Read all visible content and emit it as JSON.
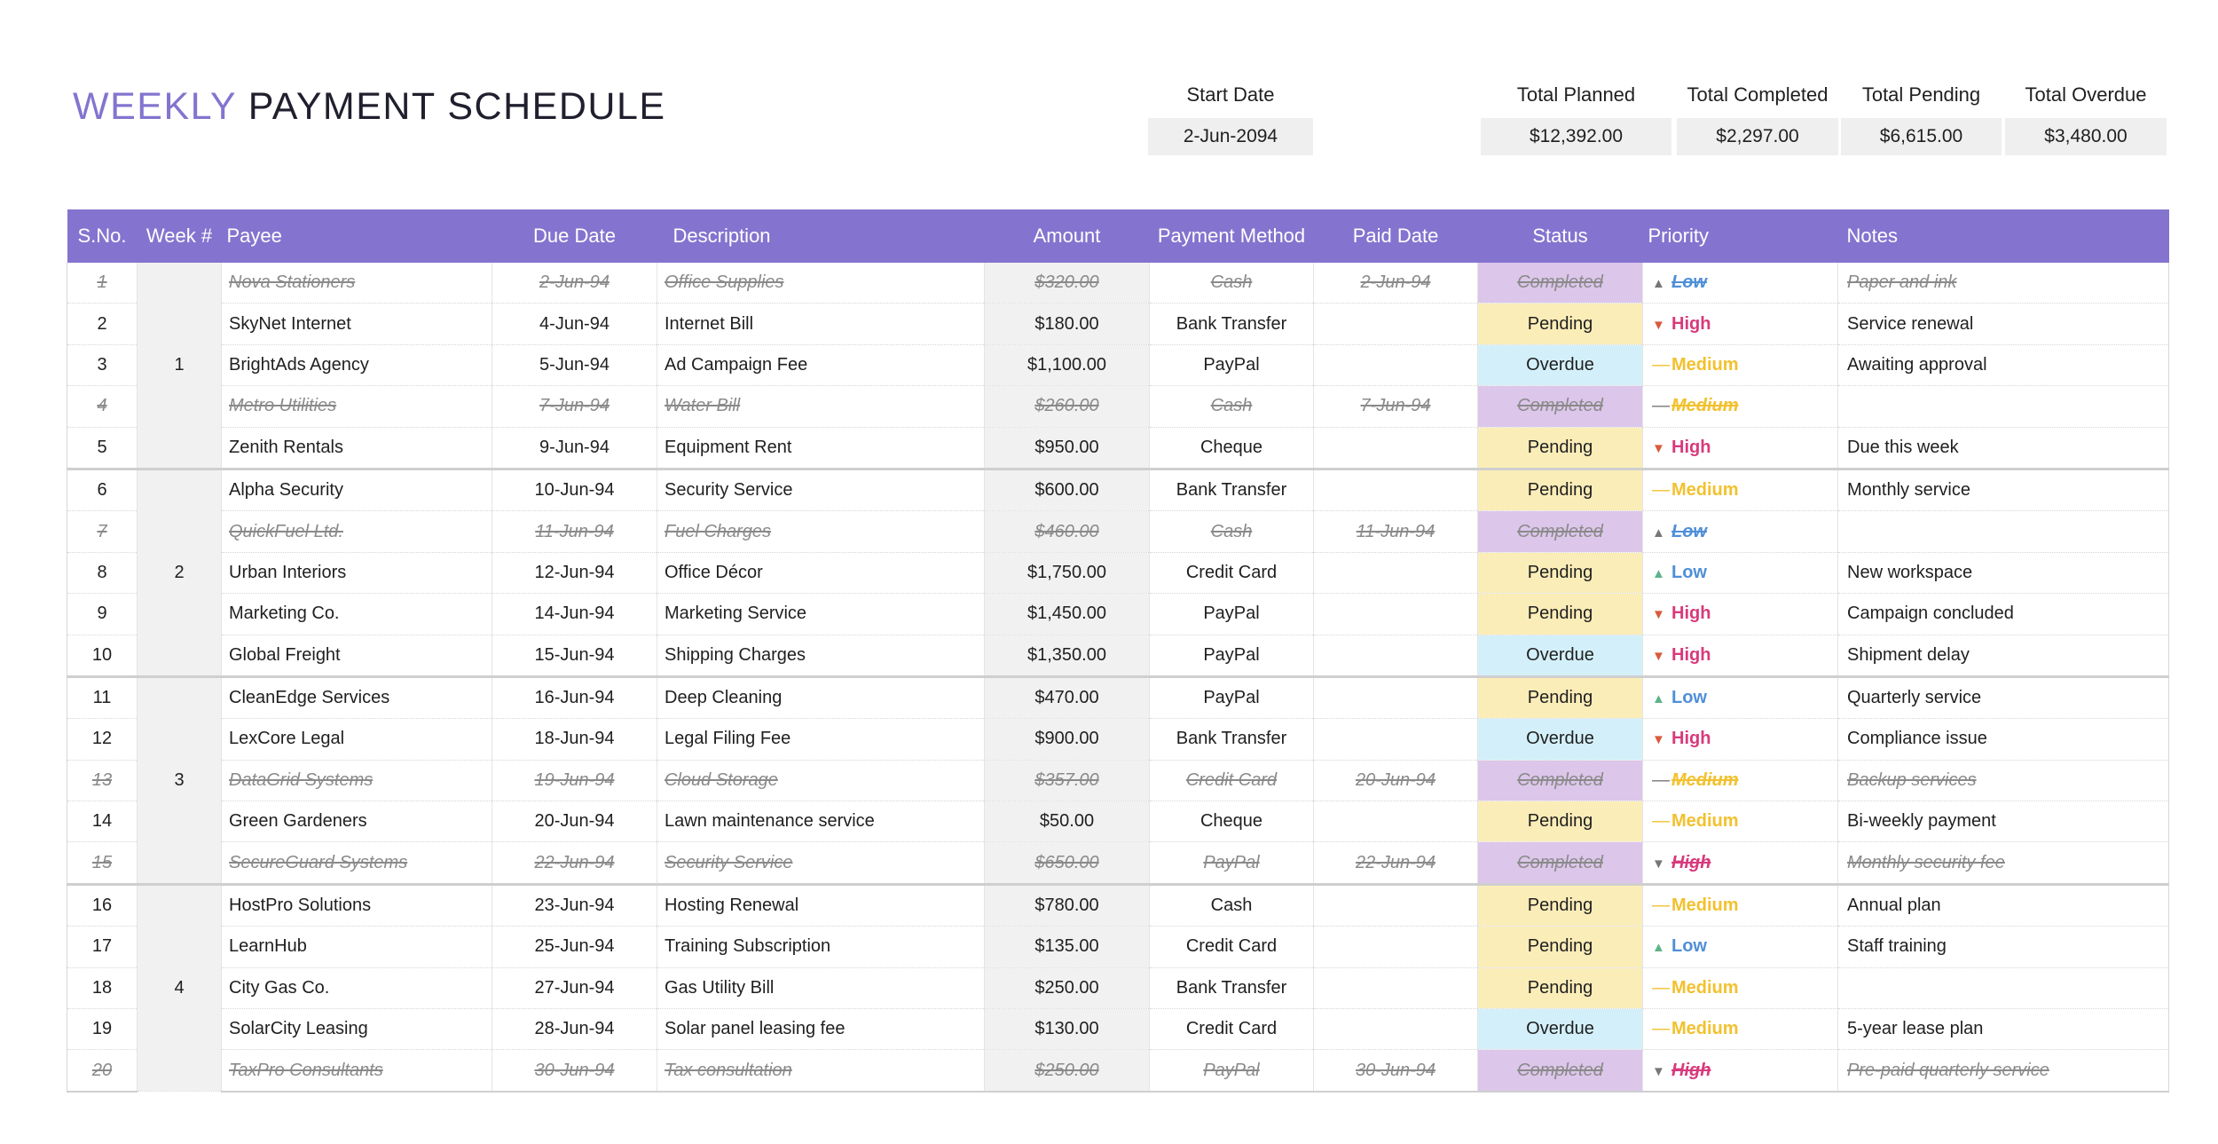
{
  "title": {
    "accent": "WEEKLY",
    "rest": "PAYMENT SCHEDULE"
  },
  "summary": {
    "start_date_label": "Start Date",
    "start_date": "2-Jun-2094",
    "total_planned_label": "Total Planned",
    "total_planned": "$12,392.00",
    "total_completed_label": "Total Completed",
    "total_completed": "$2,297.00",
    "total_pending_label": "Total Pending",
    "total_pending": "$6,615.00",
    "total_overdue_label": "Total Overdue",
    "total_overdue": "$3,480.00"
  },
  "columns": [
    "S.No.",
    "Week #",
    "Payee",
    "Due Date",
    "Description",
    "Amount",
    "Payment Method",
    "Paid Date",
    "Status",
    "Priority",
    "Notes"
  ],
  "colors": {
    "header_bg": "#8474cf",
    "pending": "#fbedb8",
    "overdue": "#d3f0fa",
    "completed": "#dcc6ea",
    "high": "#d83a7c",
    "medium": "#f2c12e",
    "low": "#4f8fd8"
  },
  "rows": [
    {
      "sno": "1",
      "week": "1",
      "payee": "Nova Stationers",
      "due": "2-Jun-94",
      "desc": "Office Supplies",
      "amount": "$320.00",
      "method": "Cash",
      "paid": "2-Jun-94",
      "status": "Completed",
      "priority": "Low",
      "notes": "Paper and ink"
    },
    {
      "sno": "2",
      "week": "1",
      "payee": "SkyNet Internet",
      "due": "4-Jun-94",
      "desc": "Internet Bill",
      "amount": "$180.00",
      "method": "Bank Transfer",
      "paid": "",
      "status": "Pending",
      "priority": "High",
      "notes": "Service renewal"
    },
    {
      "sno": "3",
      "week": "1",
      "payee": "BrightAds Agency",
      "due": "5-Jun-94",
      "desc": "Ad Campaign Fee",
      "amount": "$1,100.00",
      "method": "PayPal",
      "paid": "",
      "status": "Overdue",
      "priority": "Medium",
      "notes": "Awaiting approval"
    },
    {
      "sno": "4",
      "week": "1",
      "payee": "Metro Utilities",
      "due": "7-Jun-94",
      "desc": "Water Bill",
      "amount": "$260.00",
      "method": "Cash",
      "paid": "7-Jun-94",
      "status": "Completed",
      "priority": "Medium",
      "notes": ""
    },
    {
      "sno": "5",
      "week": "1",
      "payee": "Zenith Rentals",
      "due": "9-Jun-94",
      "desc": "Equipment Rent",
      "amount": "$950.00",
      "method": "Cheque",
      "paid": "",
      "status": "Pending",
      "priority": "High",
      "notes": "Due this week"
    },
    {
      "sno": "6",
      "week": "2",
      "payee": "Alpha Security",
      "due": "10-Jun-94",
      "desc": "Security Service",
      "amount": "$600.00",
      "method": "Bank Transfer",
      "paid": "",
      "status": "Pending",
      "priority": "Medium",
      "notes": "Monthly service"
    },
    {
      "sno": "7",
      "week": "2",
      "payee": "QuickFuel Ltd.",
      "due": "11-Jun-94",
      "desc": "Fuel Charges",
      "amount": "$460.00",
      "method": "Cash",
      "paid": "11-Jun-94",
      "status": "Completed",
      "priority": "Low",
      "notes": ""
    },
    {
      "sno": "8",
      "week": "2",
      "payee": "Urban Interiors",
      "due": "12-Jun-94",
      "desc": "Office Décor",
      "amount": "$1,750.00",
      "method": "Credit Card",
      "paid": "",
      "status": "Pending",
      "priority": "Low",
      "notes": "New workspace"
    },
    {
      "sno": "9",
      "week": "2",
      "payee": "Marketing Co.",
      "due": "14-Jun-94",
      "desc": "Marketing Service",
      "amount": "$1,450.00",
      "method": "PayPal",
      "paid": "",
      "status": "Pending",
      "priority": "High",
      "notes": "Campaign concluded"
    },
    {
      "sno": "10",
      "week": "2",
      "payee": "Global Freight",
      "due": "15-Jun-94",
      "desc": "Shipping Charges",
      "amount": "$1,350.00",
      "method": "PayPal",
      "paid": "",
      "status": "Overdue",
      "priority": "High",
      "notes": "Shipment delay"
    },
    {
      "sno": "11",
      "week": "3",
      "payee": "CleanEdge Services",
      "due": "16-Jun-94",
      "desc": "Deep Cleaning",
      "amount": "$470.00",
      "method": "PayPal",
      "paid": "",
      "status": "Pending",
      "priority": "Low",
      "notes": "Quarterly service"
    },
    {
      "sno": "12",
      "week": "3",
      "payee": "LexCore Legal",
      "due": "18-Jun-94",
      "desc": "Legal Filing Fee",
      "amount": "$900.00",
      "method": "Bank Transfer",
      "paid": "",
      "status": "Overdue",
      "priority": "High",
      "notes": "Compliance issue"
    },
    {
      "sno": "13",
      "week": "3",
      "payee": "DataGrid Systems",
      "due": "19-Jun-94",
      "desc": "Cloud Storage",
      "amount": "$357.00",
      "method": "Credit Card",
      "paid": "20-Jun-94",
      "status": "Completed",
      "priority": "Medium",
      "notes": "Backup services"
    },
    {
      "sno": "14",
      "week": "3",
      "payee": "Green Gardeners",
      "due": "20-Jun-94",
      "desc": "Lawn maintenance service",
      "amount": "$50.00",
      "method": "Cheque",
      "paid": "",
      "status": "Pending",
      "priority": "Medium",
      "notes": "Bi-weekly payment"
    },
    {
      "sno": "15",
      "week": "3",
      "payee": "SecureGuard Systems",
      "due": "22-Jun-94",
      "desc": "Security Service",
      "amount": "$650.00",
      "method": "PayPal",
      "paid": "22-Jun-94",
      "status": "Completed",
      "priority": "High",
      "notes": "Monthly security fee"
    },
    {
      "sno": "16",
      "week": "4",
      "payee": "HostPro Solutions",
      "due": "23-Jun-94",
      "desc": "Hosting Renewal",
      "amount": "$780.00",
      "method": "Cash",
      "paid": "",
      "status": "Pending",
      "priority": "Medium",
      "notes": "Annual plan"
    },
    {
      "sno": "17",
      "week": "4",
      "payee": "LearnHub",
      "due": "25-Jun-94",
      "desc": "Training Subscription",
      "amount": "$135.00",
      "method": "Credit Card",
      "paid": "",
      "status": "Pending",
      "priority": "Low",
      "notes": "Staff training"
    },
    {
      "sno": "18",
      "week": "4",
      "payee": "City Gas Co.",
      "due": "27-Jun-94",
      "desc": "Gas Utility Bill",
      "amount": "$250.00",
      "method": "Bank Transfer",
      "paid": "",
      "status": "Pending",
      "priority": "Medium",
      "notes": ""
    },
    {
      "sno": "19",
      "week": "4",
      "payee": "SolarCity Leasing",
      "due": "28-Jun-94",
      "desc": "Solar panel leasing fee",
      "amount": "$130.00",
      "method": "Credit Card",
      "paid": "",
      "status": "Overdue",
      "priority": "Medium",
      "notes": "5-year lease plan"
    },
    {
      "sno": "20",
      "week": "4",
      "payee": "TaxPro Consultants",
      "due": "30-Jun-94",
      "desc": "Tax consultation",
      "amount": "$250.00",
      "method": "PayPal",
      "paid": "30-Jun-94",
      "status": "Completed",
      "priority": "High",
      "notes": "Pre-paid quarterly service"
    }
  ]
}
